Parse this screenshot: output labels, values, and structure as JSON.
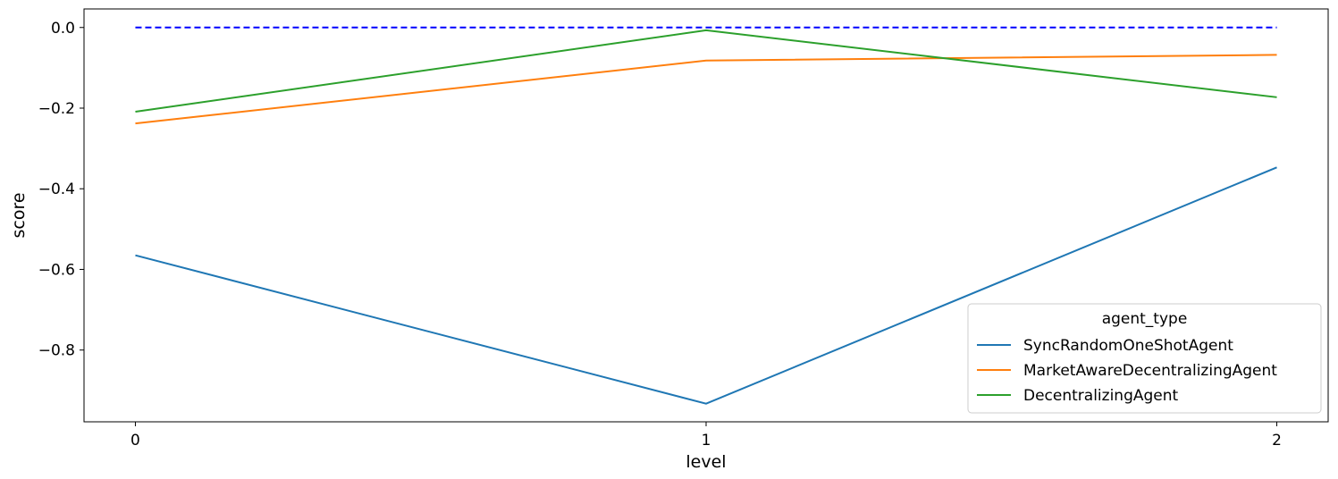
{
  "chart_data": {
    "type": "line",
    "xlabel": "level",
    "ylabel": "score",
    "x": [
      0,
      1,
      2
    ],
    "xticks": [
      "0",
      "1",
      "2"
    ],
    "xlim": [
      -0.09,
      2.09
    ],
    "ylim": [
      -0.978,
      0.046
    ],
    "yticks": [
      0.0,
      -0.2,
      -0.4,
      -0.6,
      -0.8
    ],
    "ytick_labels": [
      "0.0",
      "−0.2",
      "−0.4",
      "−0.6",
      "−0.8"
    ],
    "grid": false,
    "reference_line": {
      "y": 0.0,
      "style": "dashed",
      "color": "#0000ff"
    },
    "legend": {
      "title": "agent_type",
      "placement": "lower-right"
    },
    "series": [
      {
        "name": "SyncRandomOneShotAgent",
        "color": "#1f77b4",
        "values": [
          -0.565,
          -0.933,
          -0.347
        ]
      },
      {
        "name": "MarketAwareDecentralizingAgent",
        "color": "#ff7f0e",
        "values": [
          -0.238,
          -0.082,
          -0.068
        ]
      },
      {
        "name": "DecentralizingAgent",
        "color": "#2ca02c",
        "values": [
          -0.209,
          -0.007,
          -0.173
        ]
      }
    ]
  }
}
